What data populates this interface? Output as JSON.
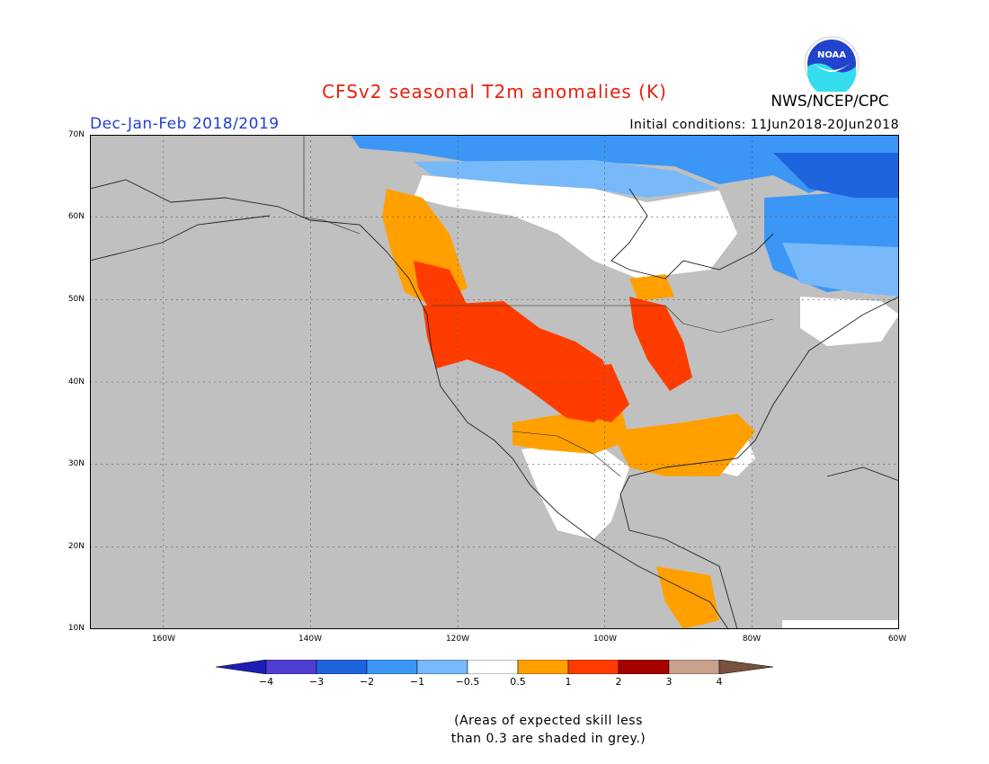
{
  "header": {
    "title": "CFSv2 seasonal T2m anomalies (K)",
    "season": "Dec-Jan-Feb 2018/2019",
    "initial_conditions": "Initial conditions: 11Jun2018-20Jun2018",
    "organization": "NWS/NCEP/CPC",
    "logo_text": "NOAA",
    "title_color": "#e8200c",
    "season_color": "#1f3fcf"
  },
  "map": {
    "projection": "cylindrical lat-lon",
    "lon_range": [
      -170,
      -60
    ],
    "lat_range": [
      10,
      70
    ],
    "grid": true,
    "lat_labels": [
      "70N",
      "60N",
      "50N",
      "40N",
      "30N",
      "20N",
      "10N"
    ],
    "lon_labels": [
      "160W",
      "140W",
      "120W",
      "100W",
      "80W",
      "60W"
    ],
    "masked_color": "#c0c0c0"
  },
  "colorbar": {
    "colors": [
      "#1e1eb4",
      "#4e3fd2",
      "#1e64dc",
      "#3c96f5",
      "#78b9fa",
      "#ffffff",
      "#ffa000",
      "#ff3c00",
      "#a50000",
      "#c8a08c",
      "#7a5040"
    ],
    "labels": [
      "−4",
      "−3",
      "−2",
      "−1",
      "−0.5",
      "0.5",
      "1",
      "2",
      "3",
      "4"
    ]
  },
  "note": {
    "line1": "(Areas of expected skill less",
    "line2": "than 0.3 are shaded in grey.)"
  }
}
